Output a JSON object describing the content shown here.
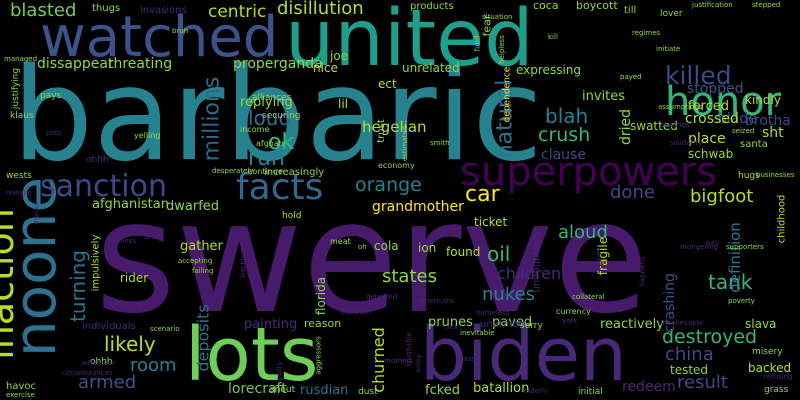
{
  "words": [
    {
      "text": "swerve",
      "color": "#481a6c"
    },
    {
      "text": "barbaric",
      "color": "#26828e"
    },
    {
      "text": "united",
      "color": "#1f9e89"
    },
    {
      "text": "lots",
      "color": "#6ece58"
    },
    {
      "text": "biden",
      "color": "#482878"
    },
    {
      "text": "watched",
      "color": "#3b528b"
    },
    {
      "text": "noone",
      "color": "#2c728e"
    },
    {
      "text": "inaction",
      "color": "#b5de2b"
    },
    {
      "text": "sanction",
      "color": "#3e4989"
    },
    {
      "text": "facts",
      "color": "#31688e"
    },
    {
      "text": "superpowers",
      "color": "#440154"
    },
    {
      "text": "honor",
      "color": "#35b779"
    },
    {
      "text": "killed",
      "color": "#3e4989"
    },
    {
      "text": "blasted",
      "color": "#6ece58"
    },
    {
      "text": "centric",
      "color": "#b5de2b"
    },
    {
      "text": "disillution",
      "color": "#b5de2b"
    },
    {
      "text": "dissappear",
      "color": "#90d743"
    },
    {
      "text": "threating",
      "color": "#90d743"
    },
    {
      "text": "properganda",
      "color": "#90d743"
    },
    {
      "text": "millions",
      "color": "#31688e"
    },
    {
      "text": "ok",
      "color": "#35b779"
    },
    {
      "text": "run",
      "color": "#26828e"
    },
    {
      "text": "loud",
      "color": "#2c728e"
    },
    {
      "text": "hegelian",
      "color": "#b5de2b"
    },
    {
      "text": "blah",
      "color": "#26828e"
    },
    {
      "text": "natural",
      "color": "#2c728e"
    },
    {
      "text": "crush",
      "color": "#35b779"
    },
    {
      "text": "clause",
      "color": "#3e4989"
    },
    {
      "text": "dried",
      "color": "#90d743"
    },
    {
      "text": "blade",
      "color": "#3b528b"
    },
    {
      "text": "stopped",
      "color": "#3b528b"
    },
    {
      "text": "brotha",
      "color": "#3e4989"
    },
    {
      "text": "place",
      "color": "#b5de2b"
    },
    {
      "text": "crossed",
      "color": "#b5de2b"
    },
    {
      "text": "forced",
      "color": "#b5de2b"
    },
    {
      "text": "kindly",
      "color": "#b5de2b"
    },
    {
      "text": "orange",
      "color": "#26828e"
    },
    {
      "text": "car",
      "color": "#fde725"
    },
    {
      "text": "done",
      "color": "#3e4989"
    },
    {
      "text": "bigfoot",
      "color": "#b5de2b"
    },
    {
      "text": "grandmother",
      "color": "#fde725"
    },
    {
      "text": "aloud",
      "color": "#35b779"
    },
    {
      "text": "oil",
      "color": "#35b779"
    },
    {
      "text": "nukes",
      "color": "#26828e"
    },
    {
      "text": "states",
      "color": "#90d743"
    },
    {
      "text": "children",
      "color": "#482878"
    },
    {
      "text": "tank",
      "color": "#35b779"
    },
    {
      "text": "definition",
      "color": "#2c728e"
    },
    {
      "text": "destroyed",
      "color": "#35b779"
    },
    {
      "text": "china",
      "color": "#3e4989"
    },
    {
      "text": "crashing",
      "color": "#3b528b"
    },
    {
      "text": "turning",
      "color": "#2c728e"
    },
    {
      "text": "likely",
      "color": "#b5de2b"
    },
    {
      "text": "room",
      "color": "#26828e"
    },
    {
      "text": "armed",
      "color": "#3b528b"
    },
    {
      "text": "deposits",
      "color": "#2c728e"
    },
    {
      "text": "painting",
      "color": "#482878"
    },
    {
      "text": "lorecraft",
      "color": "#6ece58"
    },
    {
      "text": "churned",
      "color": "#b5de2b"
    },
    {
      "text": "prunes",
      "color": "#90d743"
    },
    {
      "text": "paved",
      "color": "#90d743"
    },
    {
      "text": "reactively",
      "color": "#90d743"
    },
    {
      "text": "result",
      "color": "#3e4989"
    },
    {
      "text": "batallion",
      "color": "#b5de2b"
    },
    {
      "text": "redeem",
      "color": "#482878"
    },
    {
      "text": "fcked",
      "color": "#90d743"
    },
    {
      "text": "rusdian",
      "color": "#2c728e"
    },
    {
      "text": "backed",
      "color": "#b5de2b"
    },
    {
      "text": "tested",
      "color": "#90d743"
    },
    {
      "text": "slava",
      "color": "#90d743"
    },
    {
      "text": "afghanistan",
      "color": "#90d743"
    },
    {
      "text": "dwarfed",
      "color": "#90d743"
    },
    {
      "text": "gather",
      "color": "#b5de2b"
    },
    {
      "text": "rider",
      "color": "#b5de2b"
    },
    {
      "text": "florida",
      "color": "#90d743"
    },
    {
      "text": "found",
      "color": "#b5de2b"
    },
    {
      "text": "ticket",
      "color": "#b5de2b"
    },
    {
      "text": "fragile",
      "color": "#b5de2b"
    },
    {
      "text": "ion",
      "color": "#90d743"
    },
    {
      "text": "cola",
      "color": "#90d743"
    },
    {
      "text": "replying",
      "color": "#90d743"
    },
    {
      "text": "invites",
      "color": "#90d743"
    },
    {
      "text": "swatted",
      "color": "#90d743"
    },
    {
      "text": "schwab",
      "color": "#90d743"
    },
    {
      "text": "nice",
      "color": "#b5de2b"
    },
    {
      "text": "ect",
      "color": "#b5de2b"
    },
    {
      "text": "lil",
      "color": "#b5de2b"
    },
    {
      "text": "joe",
      "color": "#90d743"
    },
    {
      "text": "unrelated",
      "color": "#90d743"
    },
    {
      "text": "expressing",
      "color": "#90d743"
    },
    {
      "text": "fear",
      "color": "#90d743"
    },
    {
      "text": "coca",
      "color": "#90d743"
    },
    {
      "text": "boycott",
      "color": "#90d743"
    },
    {
      "text": "thugs",
      "color": "#90d743"
    },
    {
      "text": "invasions",
      "color": "#482878"
    },
    {
      "text": "products",
      "color": "#90d743"
    },
    {
      "text": "till",
      "color": "#90d743"
    },
    {
      "text": "lover",
      "color": "#90d743"
    },
    {
      "text": "sht",
      "color": "#b5de2b"
    },
    {
      "text": "trust",
      "color": "#90d743"
    },
    {
      "text": "ohhh",
      "color": "#482878"
    },
    {
      "text": "pays",
      "color": "#90d743"
    },
    {
      "text": "klaus",
      "color": "#90d743"
    },
    {
      "text": "justifying",
      "color": "#90d743"
    },
    {
      "text": "increasingly",
      "color": "#90d743"
    },
    {
      "text": "wests",
      "color": "#90d743"
    },
    {
      "text": "hold",
      "color": "#b5de2b"
    },
    {
      "text": "hugs",
      "color": "#b5de2b"
    },
    {
      "text": "childhood",
      "color": "#b5de2b"
    },
    {
      "text": "unarmed",
      "color": "#482878"
    },
    {
      "text": "undoubtedly",
      "color": "#482878"
    },
    {
      "text": "impulsively",
      "color": "#b5de2b"
    },
    {
      "text": "havoc",
      "color": "#90d743"
    },
    {
      "text": "shout",
      "color": "#90d743"
    },
    {
      "text": "securing",
      "color": "#90d743"
    },
    {
      "text": "dependence",
      "color": "#fde725"
    },
    {
      "text": "alliances",
      "color": "#90d743"
    },
    {
      "text": "ohhh ",
      "color": "#90d743"
    },
    {
      "text": "yelling",
      "color": "#90d743"
    },
    {
      "text": "economy",
      "color": "#90d743"
    },
    {
      "text": "continue",
      "color": "#90d743"
    },
    {
      "text": "afghan",
      "color": "#90d743"
    },
    {
      "text": "income",
      "color": "#90d743"
    },
    {
      "text": "santa",
      "color": "#90d743"
    },
    {
      "text": "currency",
      "color": "#90d743"
    },
    {
      "text": "misery",
      "color": "#90d743"
    },
    {
      "text": "grass",
      "color": "#90d743"
    },
    {
      "text": "initial",
      "color": "#90d743"
    },
    {
      "text": "sorry",
      "color": "#90d743"
    },
    {
      "text": "oblivion",
      "color": "#482878"
    },
    {
      "text": "reason",
      "color": "#90d743"
    },
    {
      "text": "individuals",
      "color": "#482878"
    },
    {
      "text": "plane",
      "color": "#482878"
    },
    {
      "text": "poverty",
      "color": "#90d743"
    },
    {
      "text": "exercise",
      "color": "#90d743"
    },
    {
      "text": "dust",
      "color": "#90d743"
    },
    {
      "text": "meat",
      "color": "#90d743"
    },
    {
      "text": "bring",
      "color": "#482878"
    },
    {
      "text": "bless",
      "color": "#482878"
    },
    {
      "text": "release",
      "color": "#482878"
    },
    {
      "text": "masks",
      "color": "#482878"
    },
    {
      "text": "situation",
      "color": "#90d743"
    },
    {
      "text": "managed",
      "color": "#90d743"
    },
    {
      "text": "bruh",
      "color": "#90d743"
    },
    {
      "text": "helpless",
      "color": "#90d743"
    },
    {
      "text": "kill",
      "color": "#90d743"
    },
    {
      "text": "regimes",
      "color": "#90d743"
    },
    {
      "text": "initiate",
      "color": "#90d743"
    },
    {
      "text": "payed",
      "color": "#90d743"
    },
    {
      "text": "assumptions",
      "color": "#90d743"
    },
    {
      "text": "counties",
      "color": "#482878"
    },
    {
      "text": "seized",
      "color": "#90d743"
    },
    {
      "text": "solidarity",
      "color": "#482878"
    },
    {
      "text": "justification",
      "color": "#90d743"
    },
    {
      "text": "stepped",
      "color": "#90d743"
    },
    {
      "text": "smith",
      "color": "#90d743"
    },
    {
      "text": "estimated",
      "color": "#90d743"
    },
    {
      "text": "puts",
      "color": "#482878"
    },
    {
      "text": "fund",
      "color": "#90d743"
    },
    {
      "text": "desperately",
      "color": "#90d743"
    },
    {
      "text": "businesses",
      "color": "#90d743"
    },
    {
      "text": "supporters",
      "color": "#90d743"
    },
    {
      "text": "mongering",
      "color": "#482878"
    },
    {
      "text": "accepting",
      "color": "#90d743"
    },
    {
      "text": "failing",
      "color": "#90d743"
    },
    {
      "text": "backing",
      "color": "#482878"
    },
    {
      "text": "gathering",
      "color": "#482878"
    },
    {
      "text": "wherever",
      "color": "#482878"
    },
    {
      "text": "circumstances",
      "color": "#482878"
    },
    {
      "text": "scenario",
      "color": "#90d743"
    },
    {
      "text": "aggressors",
      "color": "#90d743"
    },
    {
      "text": "guilty",
      "color": "#482878"
    },
    {
      "text": "mothers",
      "color": "#482878"
    },
    {
      "text": "laughable",
      "color": "#482878"
    },
    {
      "text": "detected",
      "color": "#482878"
    },
    {
      "text": "americans",
      "color": "#482878"
    },
    {
      "text": "inevitable",
      "color": "#90d743"
    },
    {
      "text": "soley",
      "color": "#482878"
    },
    {
      "text": "class",
      "color": "#482878"
    },
    {
      "text": "elderly",
      "color": "#482878"
    },
    {
      "text": "york",
      "color": "#482878"
    },
    {
      "text": "happens",
      "color": "#482878"
    },
    {
      "text": "unbelievable",
      "color": "#482878"
    },
    {
      "text": "refusing",
      "color": "#482878"
    },
    {
      "text": "pay",
      "color": "#482878"
    },
    {
      "text": "collateral",
      "color": "#90d743"
    },
    {
      "text": "sex",
      "color": "#482878"
    },
    {
      "text": "oh",
      "color": "#90d743"
    },
    {
      "text": "homeless",
      "color": "#482878"
    }
  ]
}
